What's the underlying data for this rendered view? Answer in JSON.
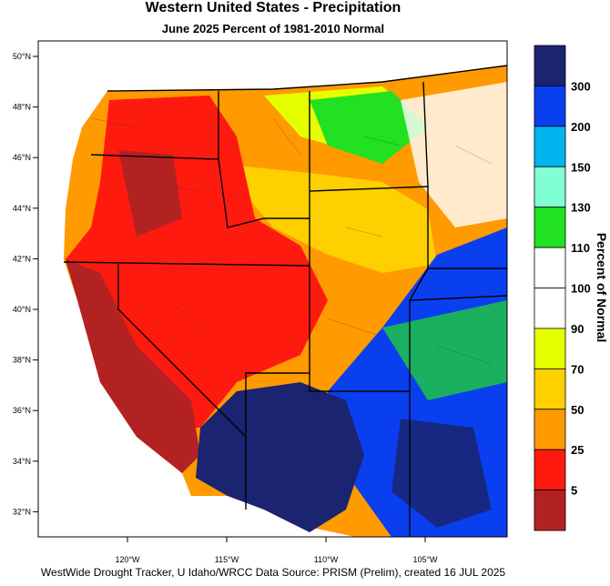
{
  "header": {
    "title": "Western United States - Precipitation",
    "subtitle": "June 2025  Percent of 1981-2010 Normal"
  },
  "map": {
    "lat_labels": [
      "50°N",
      "48°N",
      "46°N",
      "44°N",
      "42°N",
      "40°N",
      "38°N",
      "36°N",
      "34°N",
      "32°N"
    ],
    "lon_labels": [
      "120°W",
      "115°W",
      "110°W",
      "105°W"
    ]
  },
  "colorbar": {
    "title": "Percent of Normal",
    "levels": [
      "300",
      "200",
      "150",
      "130",
      "110",
      "100",
      "90",
      "70",
      "50",
      "25",
      "5"
    ],
    "colors": [
      "#1a2470",
      "#0a3ff0",
      "#00b4f0",
      "#80ffd4",
      "#22e022",
      "#ffffff",
      "#ffffff",
      "#e6ff00",
      "#ffd000",
      "#ff9a00",
      "#ff1a10",
      "#b22222"
    ]
  },
  "footer": "WestWide Drought Tracker, U Idaho/WRCC Data Source: PRISM (Prelim), created 16 JUL 2025"
}
